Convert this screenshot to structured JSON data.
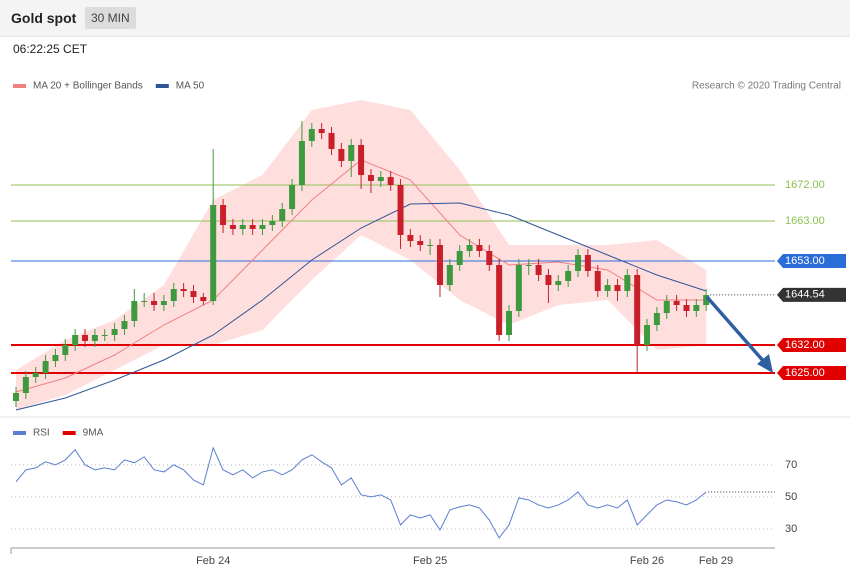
{
  "header": {
    "title": "Gold spot",
    "interval": "30 MIN",
    "time": "06:22:25 CET"
  },
  "chart_data": [
    {
      "type": "candlestick",
      "credit": "Research © 2020 Trading Central",
      "categories": [
        null,
        null,
        null,
        null,
        null,
        null,
        null,
        null,
        null,
        null,
        null,
        null,
        null,
        null,
        null,
        null,
        null,
        null,
        null,
        null,
        "Feb 24",
        null,
        null,
        null,
        null,
        null,
        null,
        null,
        null,
        null,
        null,
        null,
        null,
        null,
        null,
        null,
        null,
        null,
        null,
        null,
        null,
        null,
        "Feb 25",
        null,
        null,
        null,
        null,
        null,
        null,
        null,
        null,
        null,
        null,
        null,
        null,
        null,
        null,
        null,
        null,
        null,
        null,
        null,
        null,
        null,
        "Feb 26",
        null,
        null,
        null,
        null,
        null,
        null,
        "Feb 29"
      ],
      "open": [
        1618,
        1620,
        1624,
        1625,
        1628,
        1629.5,
        1632,
        1634.5,
        1633,
        1634.5,
        1634.5,
        1636,
        1638,
        1643,
        1643,
        1642,
        1643,
        1646,
        1645.5,
        1644,
        1643,
        1667,
        1662,
        1661,
        1662,
        1661,
        1662,
        1663,
        1666,
        1672,
        1683,
        1686,
        1685,
        1681,
        1678,
        1682,
        1674.5,
        1673,
        1674,
        1672,
        1659.5,
        1658,
        1657,
        1657,
        1647,
        1652,
        1655.5,
        1657,
        1655.5,
        1652,
        1634.5,
        1640.5,
        1652,
        1652,
        1649.5,
        1647,
        1648,
        1650.5,
        1654.5,
        1650.5,
        1645.5,
        1647,
        1645.5,
        1649.5,
        1632,
        1637,
        1640,
        1643,
        1642,
        1640.5,
        1642,
        null
      ],
      "high": [
        1621.5,
        1625.5,
        1626.5,
        1629.5,
        1631,
        1633.5,
        1636,
        1636,
        1636,
        1636,
        1637.5,
        1639.5,
        1646,
        1645,
        1645,
        1644.5,
        1647.5,
        1647.5,
        1647,
        1645,
        1681,
        1668.5,
        1663.5,
        1663.5,
        1663.5,
        1663.5,
        1664.5,
        1667.5,
        1673.5,
        1688,
        1687.5,
        1687.5,
        1686.5,
        1682.5,
        1683.5,
        1683.5,
        1676,
        1675.5,
        1675.5,
        1673.5,
        1661,
        1659.5,
        1658.5,
        1658.5,
        1653.5,
        1657,
        1658.5,
        1658.5,
        1657,
        1653.5,
        1642,
        1653.5,
        1653.5,
        1653.5,
        1651,
        1649.5,
        1652,
        1656,
        1656,
        1652,
        1648.5,
        1648.5,
        1651,
        1651,
        1638.5,
        1641.5,
        1644.5,
        1644.5,
        1643.5,
        1643.5,
        1646,
        null
      ],
      "low": [
        1616.5,
        1618.5,
        1622.5,
        1623.5,
        1626.5,
        1628,
        1630.5,
        1631.5,
        1631.5,
        1633,
        1633,
        1634.5,
        1636.5,
        1641.5,
        1640.5,
        1640.5,
        1641.5,
        1644,
        1642.5,
        1642,
        1642,
        1660,
        1659.5,
        1659.5,
        1659.5,
        1659.5,
        1660.5,
        1661.5,
        1664.5,
        1670.5,
        1681.5,
        1683.5,
        1679.5,
        1676.5,
        1674,
        1671,
        1670,
        1671.5,
        1670.5,
        1656,
        1656.5,
        1655.5,
        1654.5,
        1644,
        1645.5,
        1650.5,
        1654,
        1654,
        1650.5,
        1633,
        1633,
        1639,
        1649.5,
        1648,
        1642.5,
        1645.5,
        1646.5,
        1649,
        1649,
        1644,
        1644,
        1643,
        1644,
        1625,
        1630.5,
        1635.5,
        1638.5,
        1640.5,
        1639,
        1639,
        1640.5,
        null
      ],
      "close": [
        1620,
        1624,
        1625,
        1628,
        1629.5,
        1632,
        1634.5,
        1633,
        1634.5,
        1634.5,
        1636,
        1638,
        1643,
        1643,
        1642,
        1643,
        1646,
        1645.5,
        1644,
        1643,
        1667,
        1662,
        1661,
        1662,
        1661,
        1662,
        1663,
        1666,
        1672,
        1683,
        1686,
        1685,
        1681,
        1678,
        1682,
        1674.5,
        1673,
        1674,
        1672,
        1659.5,
        1658,
        1657,
        1657,
        1647,
        1652,
        1655.5,
        1657,
        1655.5,
        1652,
        1634.5,
        1640.5,
        1652,
        1652,
        1649.5,
        1647,
        1648,
        1650.5,
        1654.5,
        1650.5,
        1645.5,
        1647,
        1645.5,
        1649.5,
        1632,
        1637,
        1640,
        1643,
        1642,
        1640.5,
        1642,
        1644.5,
        null
      ],
      "up_color": "#3f9a3f",
      "down_color": "#c8202b",
      "ylim": [
        1613,
        1700
      ],
      "overlays": [
        {
          "name": "MA 20 + Bollinger Bands",
          "color": "#f08080",
          "band_color": "#ffdede",
          "x": [
            0,
            5,
            10,
            15,
            20,
            25,
            30,
            35,
            40,
            45,
            50,
            55,
            60,
            65,
            70
          ],
          "values": [
            1620.25,
            1623.75,
            1629.5,
            1637,
            1643.25,
            1655.75,
            1668.25,
            1678.25,
            1673.25,
            1659.5,
            1652,
            1652.75,
            1650.75,
            1643.25,
            1643.25
          ],
          "upper": [
            1625.75,
            1633.25,
            1638.25,
            1647,
            1668.25,
            1674.5,
            1690.75,
            1693.25,
            1690.75,
            1675.75,
            1657,
            1657,
            1657,
            1658.25,
            1650.75
          ],
          "lower": [
            1615.75,
            1619.5,
            1625.75,
            1632,
            1632,
            1635.75,
            1648.25,
            1659.5,
            1653.25,
            1643.25,
            1637,
            1642,
            1643.25,
            1630.75,
            1632
          ]
        },
        {
          "name": "MA 50",
          "color": "#2f5597",
          "x": [
            0,
            5,
            10,
            15,
            20,
            25,
            30,
            35,
            40,
            45,
            50,
            55,
            60,
            65,
            70
          ],
          "values": [
            1615.75,
            1618.75,
            1623.25,
            1628.25,
            1634.5,
            1643.25,
            1653.25,
            1661.25,
            1667.25,
            1667.5,
            1664.5,
            1659.5,
            1654.5,
            1649.5,
            1645.5
          ]
        }
      ],
      "levels": [
        {
          "value": 1672,
          "label": "1672.00",
          "color": "#8cc152",
          "style": "text"
        },
        {
          "value": 1663,
          "label": "1663.00",
          "color": "#8cc152",
          "style": "text"
        },
        {
          "value": 1653,
          "label": "1653.00",
          "color": "#2a6dd9",
          "style": "box"
        },
        {
          "value": 1644.54,
          "label": "1644.54",
          "color": "#333333",
          "style": "current"
        },
        {
          "value": 1632,
          "label": "1632.00",
          "color": "#e00000",
          "style": "box-bold"
        },
        {
          "value": 1625,
          "label": "1625.00",
          "color": "#e00000",
          "style": "box-bold"
        }
      ]
    },
    {
      "type": "line",
      "ylim": [
        20,
        98
      ],
      "yticks": [
        30,
        50,
        70
      ],
      "series": [
        {
          "name": "RSI",
          "color": "#5b7fd0",
          "values": [
            59.4,
            66.9,
            68.1,
            71.9,
            70,
            73.1,
            79.4,
            70,
            66.9,
            68.1,
            66.9,
            73.1,
            71.3,
            75,
            66.9,
            65.6,
            70,
            66.9,
            60.6,
            57.5,
            80.6,
            66.9,
            63.8,
            66.9,
            61.9,
            65.6,
            66.9,
            63.8,
            66.9,
            73.1,
            76.3,
            71.9,
            68.1,
            57.5,
            61.9,
            51.3,
            50,
            51.3,
            48.1,
            32.5,
            38.8,
            36.9,
            38.8,
            29.4,
            41.9,
            43.8,
            45,
            43.1,
            35.6,
            24.4,
            32.5,
            49.4,
            48.1,
            45,
            43.1,
            45,
            48.1,
            53.1,
            45,
            43.1,
            45,
            43.1,
            48.1,
            32.5,
            38.8,
            45,
            48.1,
            46.9,
            45,
            48.1,
            53.1,
            null
          ]
        },
        {
          "name": "9MA",
          "color": "#e00000"
        }
      ]
    }
  ]
}
